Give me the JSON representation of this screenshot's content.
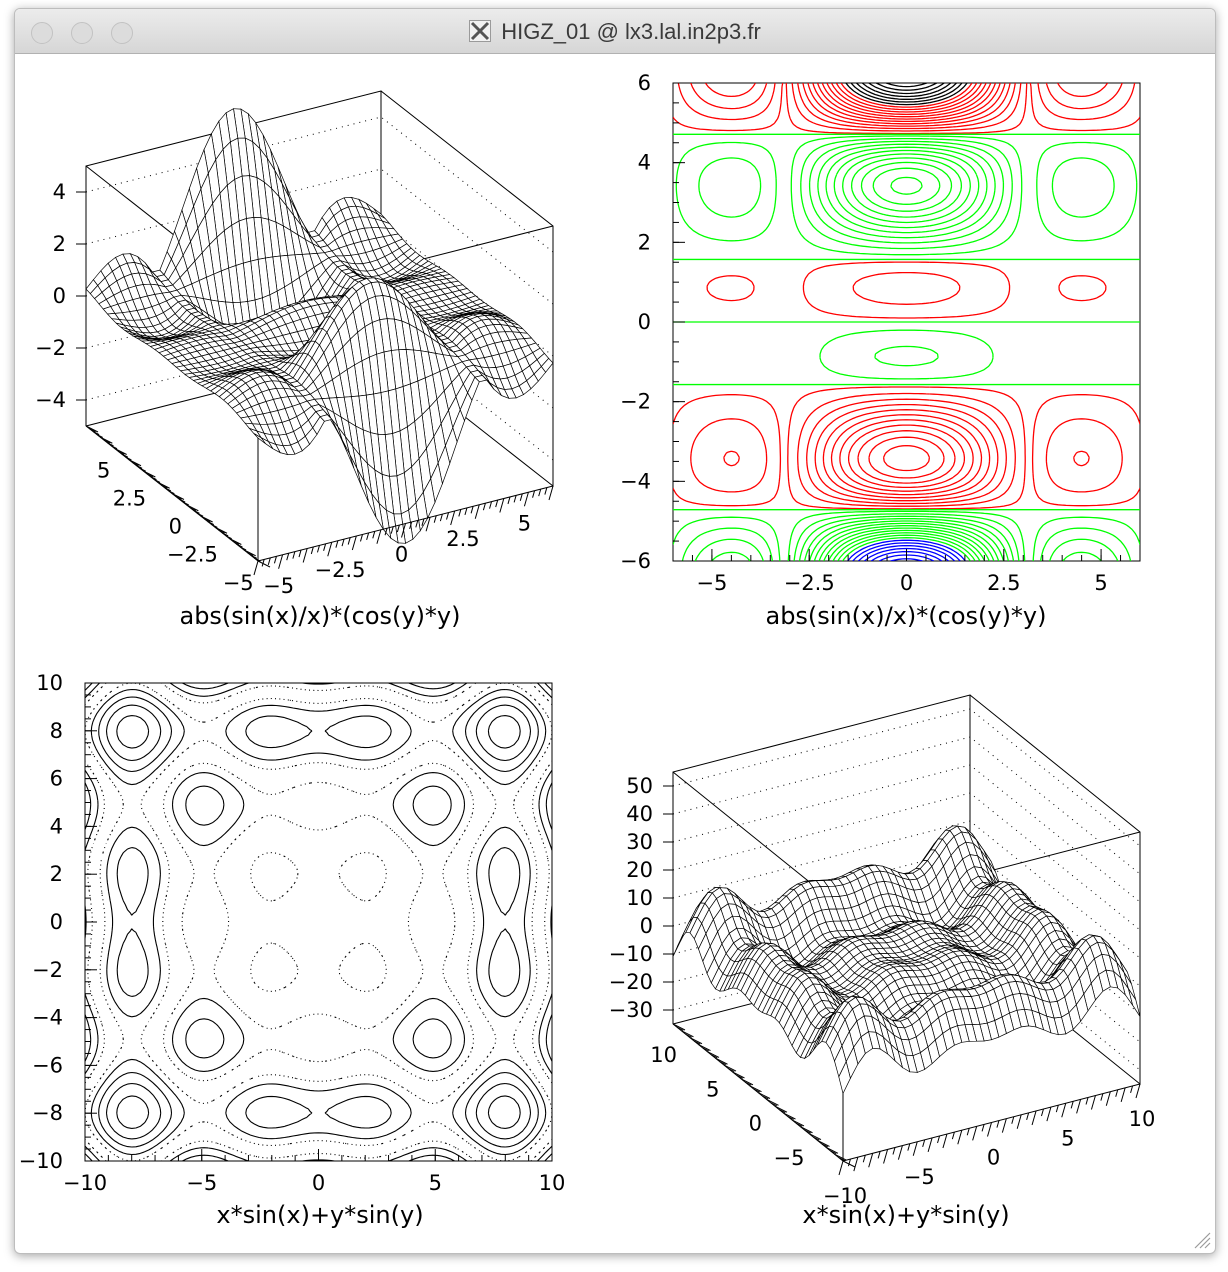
{
  "window": {
    "title": "HIGZ_01 @ lx3.lal.in2p3.fr"
  },
  "icons": {
    "app_icon": "x11-icon",
    "close": "close-button",
    "minimize": "minimize-button",
    "zoom": "zoom-button",
    "resize": "resize-grip-icon"
  },
  "colors": {
    "contour_green": "#00ff00",
    "contour_red": "#ff0000",
    "contour_blue": "#0000ff",
    "contour_black": "#000000"
  },
  "chart_data": [
    {
      "type": "surface",
      "function": "abs(sin(x)/x)*(cos(y)*y)",
      "xlabel": "abs(sin(x)/x)*(cos(y)*y)",
      "z_ticks": [
        "4",
        "2",
        "0",
        "−2",
        "−4"
      ],
      "x_ticks": [
        "−5",
        "−2.5",
        "0",
        "2.5",
        "5"
      ],
      "y_ticks": [
        "5",
        "2.5",
        "0",
        "−2.5",
        "−5"
      ],
      "xlim": [
        -6,
        6
      ],
      "ylim": [
        -6,
        6
      ],
      "zlim": [
        -5,
        5
      ]
    },
    {
      "type": "contour",
      "function": "abs(sin(x)/x)*(cos(y)*y)",
      "xlabel": "abs(sin(x)/x)*(cos(y)*y)",
      "x_ticks": [
        "−5",
        "−2.5",
        "0",
        "2.5",
        "5"
      ],
      "y_ticks": [
        "6",
        "4",
        "2",
        "0",
        "−2",
        "−4",
        "−6"
      ],
      "xlim": [
        -6,
        6
      ],
      "ylim": [
        -6,
        6
      ],
      "level_colors": [
        "blue",
        "green",
        "red",
        "black"
      ]
    },
    {
      "type": "contour",
      "function": "x*sin(x)+y*sin(y)",
      "xlabel": "x*sin(x)+y*sin(y)",
      "x_ticks": [
        "−10",
        "−5",
        "0",
        "5",
        "10"
      ],
      "y_ticks": [
        "10",
        "8",
        "6",
        "4",
        "2",
        "0",
        "−2",
        "−4",
        "−6",
        "−8",
        "−10"
      ],
      "xlim": [
        -10,
        10
      ],
      "ylim": [
        -10,
        10
      ],
      "line_styles": [
        "dotted",
        "dashed",
        "solid"
      ]
    },
    {
      "type": "surface",
      "function": "x*sin(x)+y*sin(y)",
      "xlabel": "x*sin(x)+y*sin(y)",
      "z_ticks": [
        "50",
        "40",
        "30",
        "20",
        "10",
        "0",
        "−10",
        "−20",
        "−30"
      ],
      "x_ticks": [
        "−10",
        "−5",
        "0",
        "5",
        "10"
      ],
      "y_ticks": [
        "10",
        "5",
        "0",
        "−5"
      ],
      "xlim": [
        -10,
        10
      ],
      "ylim": [
        -10,
        10
      ],
      "zlim": [
        -35,
        55
      ]
    }
  ]
}
